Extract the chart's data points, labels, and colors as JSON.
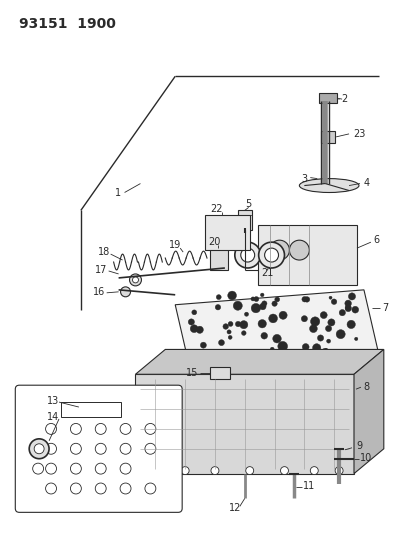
{
  "title": "93151  1900",
  "bg_color": "#ffffff",
  "fig_width": 4.14,
  "fig_height": 5.33,
  "dpi": 100,
  "line_color": "#2a2a2a"
}
